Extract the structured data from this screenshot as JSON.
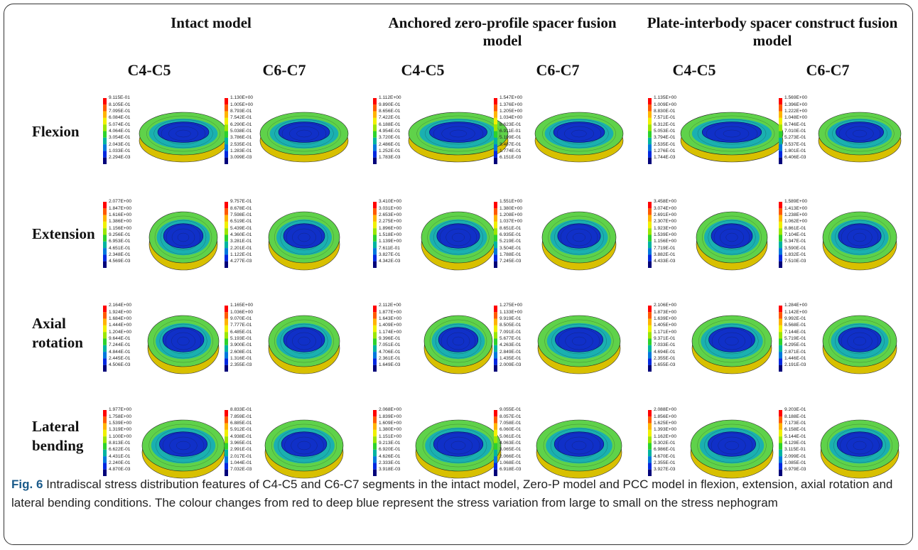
{
  "figure": {
    "columns": [
      {
        "title": "Intact model",
        "segments": [
          "C4-C5",
          "C6-C7"
        ]
      },
      {
        "title": "Anchored zero-profile spacer fusion model",
        "segments": [
          "C4-C5",
          "C6-C7"
        ]
      },
      {
        "title": "Plate-interbody spacer construct fusion model",
        "segments": [
          "C4-C5",
          "C6-C7"
        ]
      }
    ],
    "rows": [
      {
        "label": "Flexion",
        "legends": [
          [
            "9.115E-01",
            "8.105E-01",
            "7.095E-01",
            "6.084E-01",
            "5.074E-01",
            "4.064E-01",
            "3.054E-01",
            "2.043E-01",
            "1.033E-01",
            "2.294E-03"
          ],
          [
            "1.130E+00",
            "1.005E+00",
            "8.793E-01",
            "7.542E-01",
            "6.290E-01",
            "5.038E-01",
            "3.786E-01",
            "2.535E-01",
            "1.283E-01",
            "3.099E-03"
          ],
          [
            "1.112E+00",
            "9.890E-01",
            "8.656E-01",
            "7.422E-01",
            "6.188E-01",
            "4.954E-01",
            "3.720E-01",
            "2.486E-01",
            "1.252E-01",
            "1.783E-03"
          ],
          [
            "1.547E+00",
            "1.376E+00",
            "1.205E+00",
            "1.034E+00",
            "8.623E-01",
            "6.911E-01",
            "5.199E-01",
            "3.487E-01",
            "1.774E-01",
            "6.151E-03"
          ],
          [
            "1.135E+00",
            "1.009E+00",
            "8.830E-01",
            "7.571E-01",
            "6.312E-01",
            "5.053E-01",
            "3.794E-01",
            "2.535E-01",
            "1.276E-01",
            "1.744E-03"
          ],
          [
            "1.569E+00",
            "1.396E+00",
            "1.222E+00",
            "1.048E+00",
            "8.746E-01",
            "7.010E-01",
            "5.273E-01",
            "3.537E-01",
            "1.801E-01",
            "6.406E-03"
          ]
        ]
      },
      {
        "label": "Extension",
        "legends": [
          [
            "2.077E+00",
            "1.847E+00",
            "1.616E+00",
            "1.386E+00",
            "1.156E+00",
            "9.256E-01",
            "6.953E-01",
            "4.651E-01",
            "2.348E-01",
            "4.569E-03"
          ],
          [
            "9.757E-01",
            "8.678E-01",
            "7.598E-01",
            "6.519E-01",
            "5.439E-01",
            "4.360E-01",
            "3.281E-01",
            "2.201E-01",
            "1.122E-01",
            "4.277E-03"
          ],
          [
            "3.410E+00",
            "3.031E+00",
            "2.653E+00",
            "2.275E+00",
            "1.896E+00",
            "1.518E+00",
            "1.139E+00",
            "7.611E-01",
            "3.827E-01",
            "4.342E-03"
          ],
          [
            "1.551E+00",
            "1.380E+00",
            "1.208E+00",
            "1.037E+00",
            "8.651E-01",
            "6.935E-01",
            "5.219E-01",
            "3.504E-01",
            "1.788E-01",
            "7.245E-03"
          ],
          [
            "3.458E+00",
            "3.074E+00",
            "2.691E+00",
            "2.307E+00",
            "1.923E+00",
            "1.539E+00",
            "1.156E+00",
            "7.719E-01",
            "3.882E-01",
            "4.433E-03"
          ],
          [
            "1.589E+00",
            "1.413E+00",
            "1.238E+00",
            "1.062E+00",
            "8.861E-01",
            "7.104E-01",
            "5.347E-01",
            "3.590E-01",
            "1.832E-01",
            "7.510E-03"
          ]
        ]
      },
      {
        "label": "Axial rotation",
        "legends": [
          [
            "2.164E+00",
            "1.924E+00",
            "1.684E+00",
            "1.444E+00",
            "1.204E+00",
            "9.644E-01",
            "7.244E-01",
            "4.844E-01",
            "2.445E-01",
            "4.506E-03"
          ],
          [
            "1.165E+00",
            "1.036E+00",
            "9.070E-01",
            "7.777E-01",
            "6.485E-01",
            "5.193E-01",
            "3.900E-01",
            "2.608E-01",
            "1.316E-01",
            "2.355E-03"
          ],
          [
            "2.112E+00",
            "1.877E+00",
            "1.643E+00",
            "1.409E+00",
            "1.174E+00",
            "9.396E-01",
            "7.051E-01",
            "4.706E-01",
            "2.361E-01",
            "1.649E-03"
          ],
          [
            "1.275E+00",
            "1.133E+00",
            "9.919E-01",
            "8.505E-01",
            "7.091E-01",
            "5.677E-01",
            "4.263E-01",
            "2.849E-01",
            "1.435E-01",
            "2.009E-03"
          ],
          [
            "2.106E+00",
            "1.873E+00",
            "1.639E+00",
            "1.405E+00",
            "1.171E+00",
            "9.371E-01",
            "7.033E-01",
            "4.694E-01",
            "2.355E-01",
            "1.655E-03"
          ],
          [
            "1.284E+00",
            "1.142E+00",
            "9.992E-01",
            "8.568E-01",
            "7.144E-01",
            "5.719E-01",
            "4.295E-01",
            "2.871E-01",
            "1.446E-01",
            "2.191E-03"
          ]
        ]
      },
      {
        "label": "Lateral bending",
        "legends": [
          [
            "1.977E+00",
            "1.758E+00",
            "1.539E+00",
            "1.319E+00",
            "1.100E+00",
            "8.813E-01",
            "6.622E-01",
            "4.431E-01",
            "2.240E-01",
            "4.870E-03"
          ],
          [
            "8.833E-01",
            "7.859E-01",
            "6.885E-01",
            "5.912E-01",
            "4.938E-01",
            "3.965E-01",
            "2.991E-01",
            "2.017E-01",
            "1.044E-01",
            "7.032E-03"
          ],
          [
            "2.068E+00",
            "1.839E+00",
            "1.609E+00",
            "1.380E+00",
            "1.151E+00",
            "9.213E-01",
            "6.920E-01",
            "4.626E-01",
            "2.333E-01",
            "3.918E-03"
          ],
          [
            "9.055E-01",
            "8.057E-01",
            "7.058E-01",
            "6.060E-01",
            "5.061E-01",
            "4.063E-01",
            "3.065E-01",
            "2.066E-01",
            "1.068E-01",
            "6.918E-03"
          ],
          [
            "2.088E+00",
            "1.856E+00",
            "1.625E+00",
            "1.393E+00",
            "1.162E+00",
            "9.302E-01",
            "6.986E-01",
            "4.670E-01",
            "2.355E-01",
            "3.927E-03"
          ],
          [
            "9.203E-01",
            "8.188E-01",
            "7.173E-01",
            "6.158E-01",
            "5.144E-01",
            "4.129E-01",
            "3.115E-01",
            "2.099E-01",
            "1.085E-01",
            "6.979E-03"
          ]
        ]
      }
    ],
    "caption": {
      "label": "Fig. 6",
      "text": "Intradiscal stress distribution features of C4-C5 and C6-C7 segments in the intact model, Zero-P model and PCC model in flexion, extension, axial rotation and lateral bending conditions. The colour changes from red to deep blue represent the stress variation from large to small on the stress nephogram"
    }
  }
}
